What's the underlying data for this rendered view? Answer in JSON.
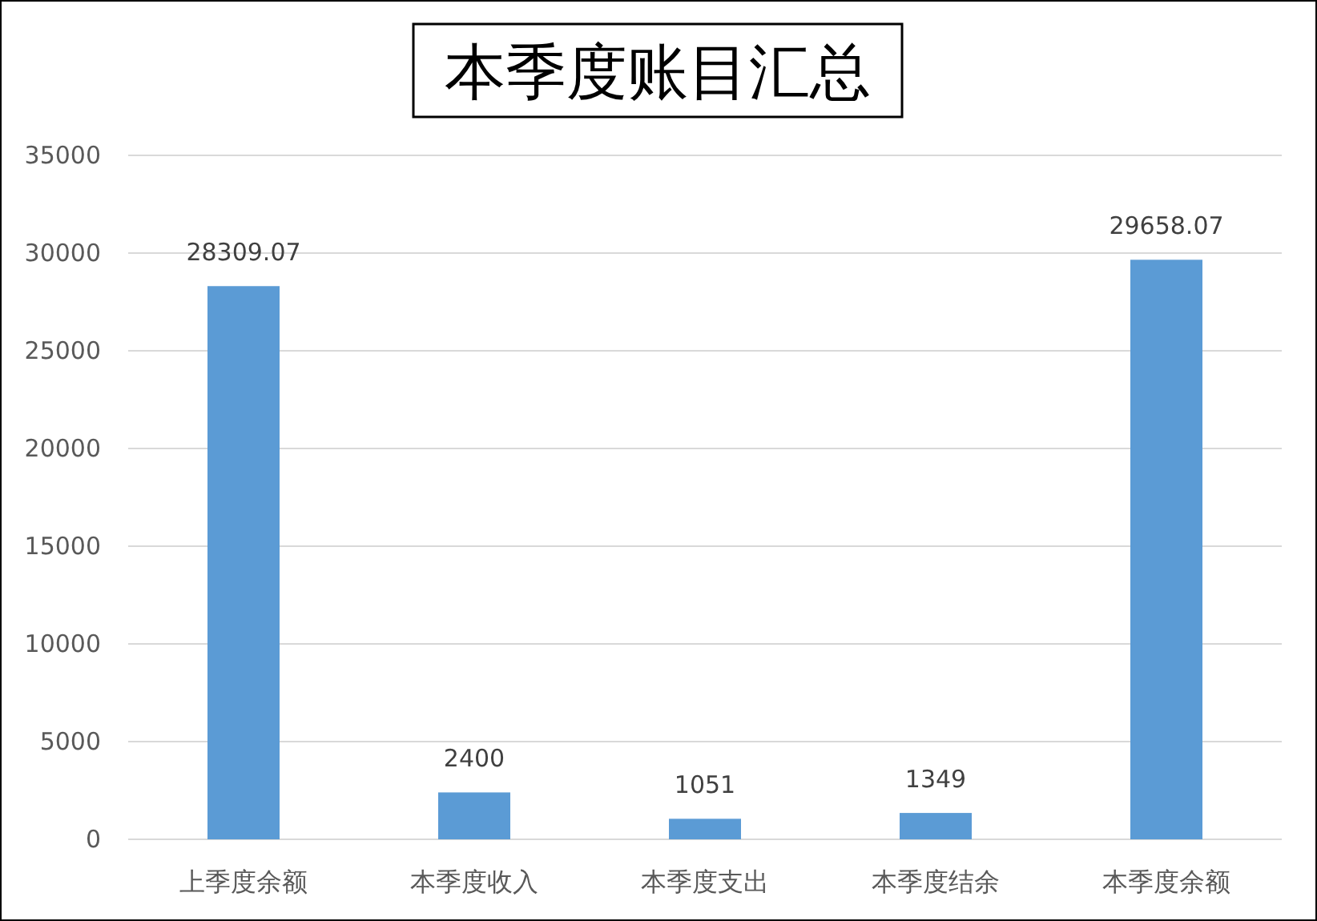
{
  "chart_data": {
    "type": "bar",
    "title": "本季度账目汇总",
    "categories": [
      "上季度余额",
      "本季度收入",
      "本季度支出",
      "本季度结余",
      "本季度余额"
    ],
    "values": [
      28309.07,
      2400,
      1051,
      1349,
      29658.07
    ],
    "color": "#5b9bd5",
    "ylim": [
      0,
      35000
    ],
    "yticks": [
      0,
      5000,
      10000,
      15000,
      20000,
      25000,
      30000,
      35000
    ],
    "grid": "y",
    "data_labels": true
  }
}
